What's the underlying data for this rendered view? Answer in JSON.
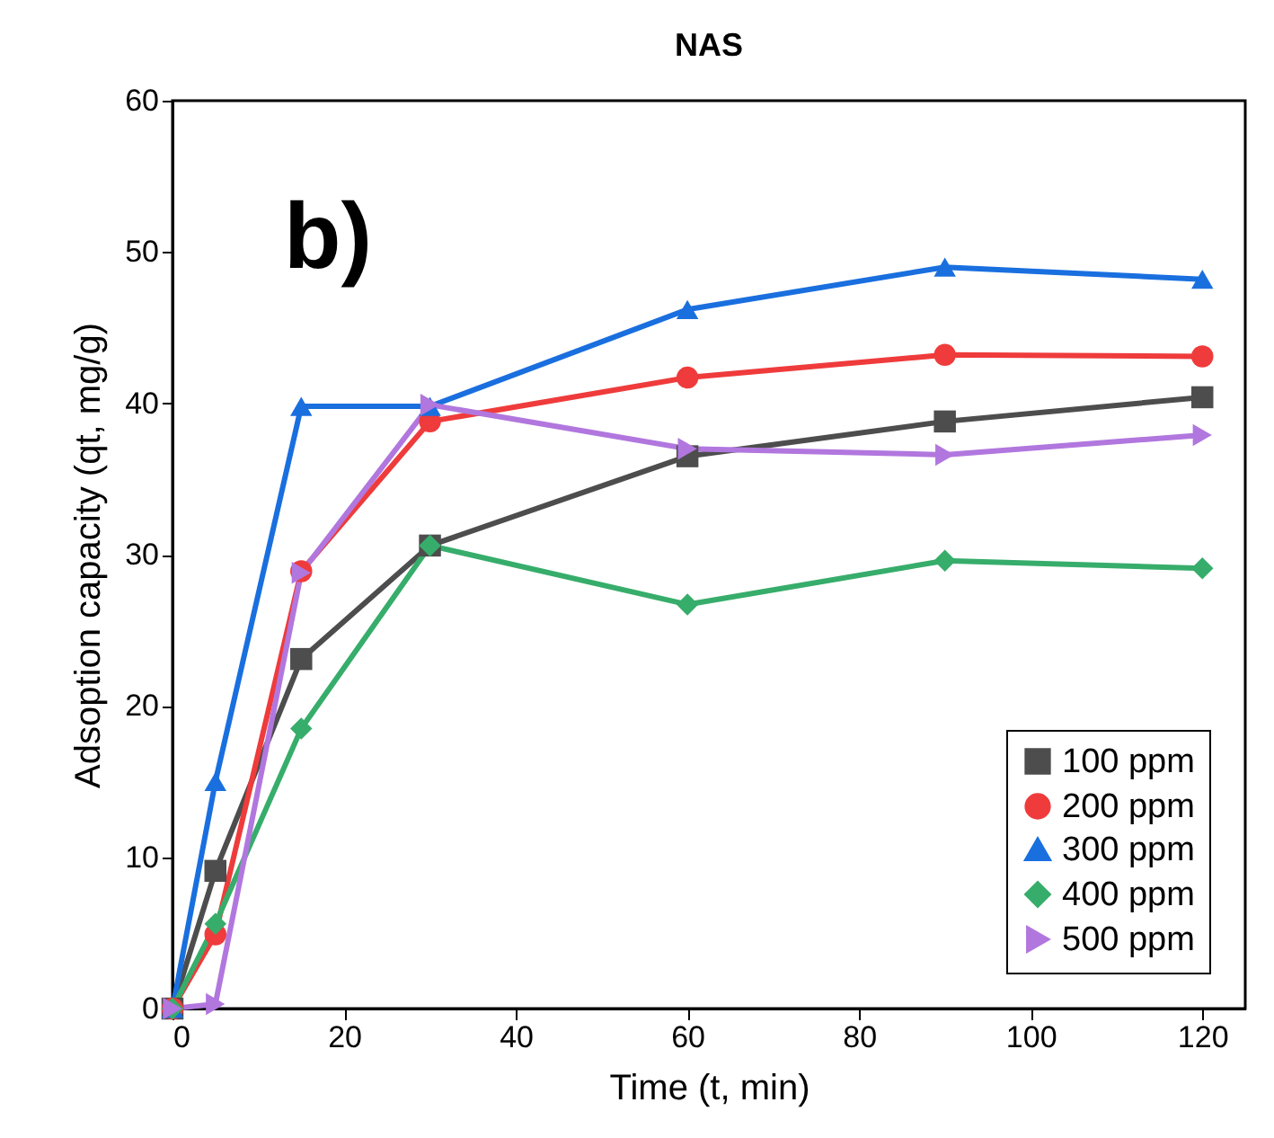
{
  "chart_data": {
    "type": "line",
    "title": "NAS",
    "xlabel": "Time (t, min)",
    "ylabel": "Adsoption capacity (qt, mg/g)",
    "x": [
      0,
      5,
      15,
      30,
      60,
      90,
      120
    ],
    "series": [
      {
        "name": "100 ppm",
        "color": "#4d4d4d",
        "marker": "square",
        "values": [
          0,
          9.1,
          23.1,
          30.6,
          36.5,
          38.8,
          40.4
        ]
      },
      {
        "name": "200 ppm",
        "color": "#ef3b3b",
        "marker": "circle",
        "values": [
          0,
          4.9,
          28.9,
          38.8,
          41.7,
          43.2,
          43.1
        ]
      },
      {
        "name": "300 ppm",
        "color": "#1a6fdf",
        "marker": "triangle",
        "values": [
          0,
          15.0,
          39.8,
          39.8,
          46.2,
          49.0,
          48.2
        ]
      },
      {
        "name": "400 ppm",
        "color": "#37ad6b",
        "marker": "diamond",
        "values": [
          0,
          5.6,
          18.5,
          30.6,
          26.7,
          29.6,
          29.1
        ]
      },
      {
        "name": "500 ppm",
        "color": "#b177de",
        "marker": "triangle-right",
        "values": [
          0,
          0.3,
          28.8,
          39.9,
          37.0,
          36.6,
          37.9
        ]
      }
    ],
    "xlim": [
      0,
      125
    ],
    "xticks": [
      0,
      20,
      40,
      60,
      80,
      100,
      120
    ],
    "ylim": [
      0,
      60
    ],
    "yticks": [
      0,
      10,
      20,
      30,
      40,
      50,
      60
    ],
    "annotations": [
      "b)"
    ],
    "legend": "bottom right",
    "grid": false,
    "line_style": "solid"
  }
}
